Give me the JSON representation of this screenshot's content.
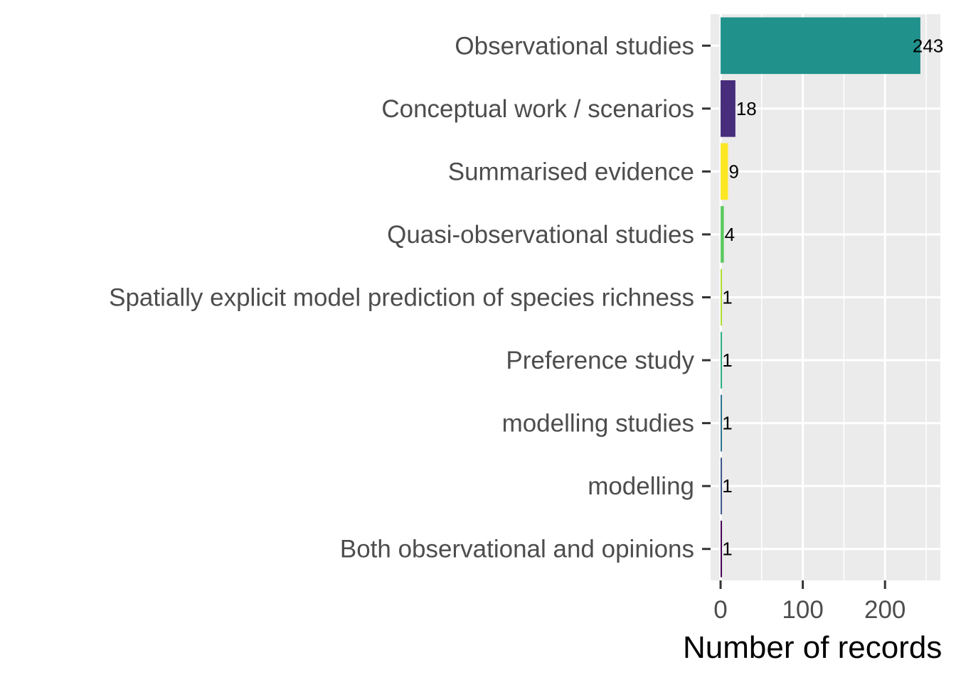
{
  "chart_data": {
    "type": "bar",
    "orientation": "horizontal",
    "categories": [
      "Observational studies",
      "Conceptual work / scenarios",
      "Summarised evidence",
      "Quasi-observational studies",
      "Spatially explicit model prediction of species richness",
      "Preference study",
      "modelling studies",
      "modelling",
      "Both observational and opinions"
    ],
    "values": [
      243,
      18,
      9,
      4,
      1,
      1,
      1,
      1,
      1
    ],
    "data_labels": [
      "243",
      "18",
      "9",
      "4",
      "1",
      "1",
      "1",
      "1",
      "1"
    ],
    "colors": [
      "#21918c",
      "#472d7b",
      "#fde725",
      "#5ec962",
      "#addc30",
      "#28ae80",
      "#2c728e",
      "#3b528b",
      "#440154"
    ],
    "title": "",
    "xlabel": "Number of records",
    "ylabel": "",
    "xlim": [
      -12.15,
      267.3
    ],
    "x_ticks": [
      0,
      100,
      200
    ],
    "x_tick_labels": [
      "0",
      "100",
      "200"
    ],
    "x_minor_ticks": [
      50,
      150,
      250
    ],
    "grid": true,
    "legend": "none",
    "panel_background": "#ebebeb",
    "grid_color": "#ffffff"
  }
}
